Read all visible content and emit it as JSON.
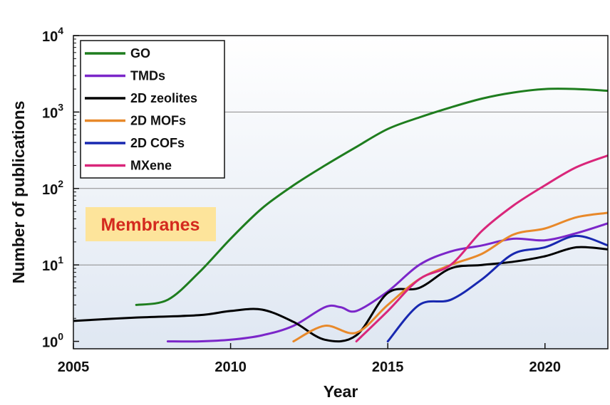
{
  "chart_data": {
    "type": "line",
    "xlabel": "Year",
    "ylabel": "Number of publications",
    "xlim": [
      2005,
      2022
    ],
    "ylim": [
      0.8,
      10000
    ],
    "yscale": "log",
    "xticks": [
      2005,
      2010,
      2015,
      2020
    ],
    "yticks": [
      {
        "value": 1,
        "base": "10",
        "exp": "0"
      },
      {
        "value": 10,
        "base": "10",
        "exp": "1"
      },
      {
        "value": 100,
        "base": "10",
        "exp": "2"
      },
      {
        "value": 1000,
        "base": "10",
        "exp": "3"
      },
      {
        "value": 10000,
        "base": "10",
        "exp": "4"
      }
    ],
    "grid": "horizontal",
    "legend_position": "top-left",
    "annotation": {
      "text": "Membranes",
      "color": "#d42a1e",
      "background": "#fde49b"
    },
    "series": [
      {
        "name": "GO",
        "color": "#1e7d1e",
        "x": [
          2007,
          2008,
          2009,
          2010,
          2011,
          2012,
          2013,
          2014,
          2015,
          2016,
          2017,
          2018,
          2019,
          2020,
          2021,
          2022
        ],
        "y": [
          3,
          3.5,
          8,
          22,
          55,
          110,
          200,
          350,
          600,
          850,
          1150,
          1500,
          1800,
          2000,
          2000,
          1900
        ]
      },
      {
        "name": "TMDs",
        "color": "#7b26c9",
        "x": [
          2008,
          2009,
          2010,
          2011,
          2012,
          2013,
          2013.5,
          2014,
          2015,
          2016,
          2017,
          2018,
          2019,
          2020,
          2021,
          2022
        ],
        "y": [
          1,
          1,
          1.05,
          1.2,
          1.6,
          2.8,
          2.8,
          2.5,
          4.5,
          10,
          15,
          18,
          22,
          21,
          26,
          35
        ]
      },
      {
        "name": "2D zeolites",
        "color": "#000000",
        "x": [
          2005,
          2007,
          2009,
          2010,
          2011,
          2012,
          2013,
          2014,
          2015,
          2016,
          2017,
          2018,
          2019,
          2020,
          2021,
          2022
        ],
        "y": [
          1.85,
          2.05,
          2.2,
          2.5,
          2.6,
          1.8,
          1.05,
          1.2,
          4.3,
          5,
          9,
          10,
          11,
          13,
          17,
          16
        ]
      },
      {
        "name": "2D MOFs",
        "color": "#e8892a",
        "x": [
          2012,
          2013,
          2014,
          2015,
          2016,
          2017,
          2018,
          2019,
          2020,
          2021,
          2022
        ],
        "y": [
          1,
          1.6,
          1.3,
          3,
          6.5,
          10,
          14,
          25,
          30,
          42,
          48
        ]
      },
      {
        "name": "2D COFs",
        "color": "#1828b0",
        "x": [
          2015,
          2016,
          2017,
          2018,
          2019,
          2020,
          2021,
          2022
        ],
        "y": [
          1,
          3,
          3.5,
          6.5,
          14,
          17,
          24,
          18
        ]
      },
      {
        "name": "MXene",
        "color": "#d9267a",
        "x": [
          2014,
          2015,
          2016,
          2017,
          2018,
          2019,
          2020,
          2021,
          2022
        ],
        "y": [
          1,
          2.5,
          6.5,
          10,
          28,
          60,
          110,
          190,
          270
        ]
      }
    ]
  }
}
